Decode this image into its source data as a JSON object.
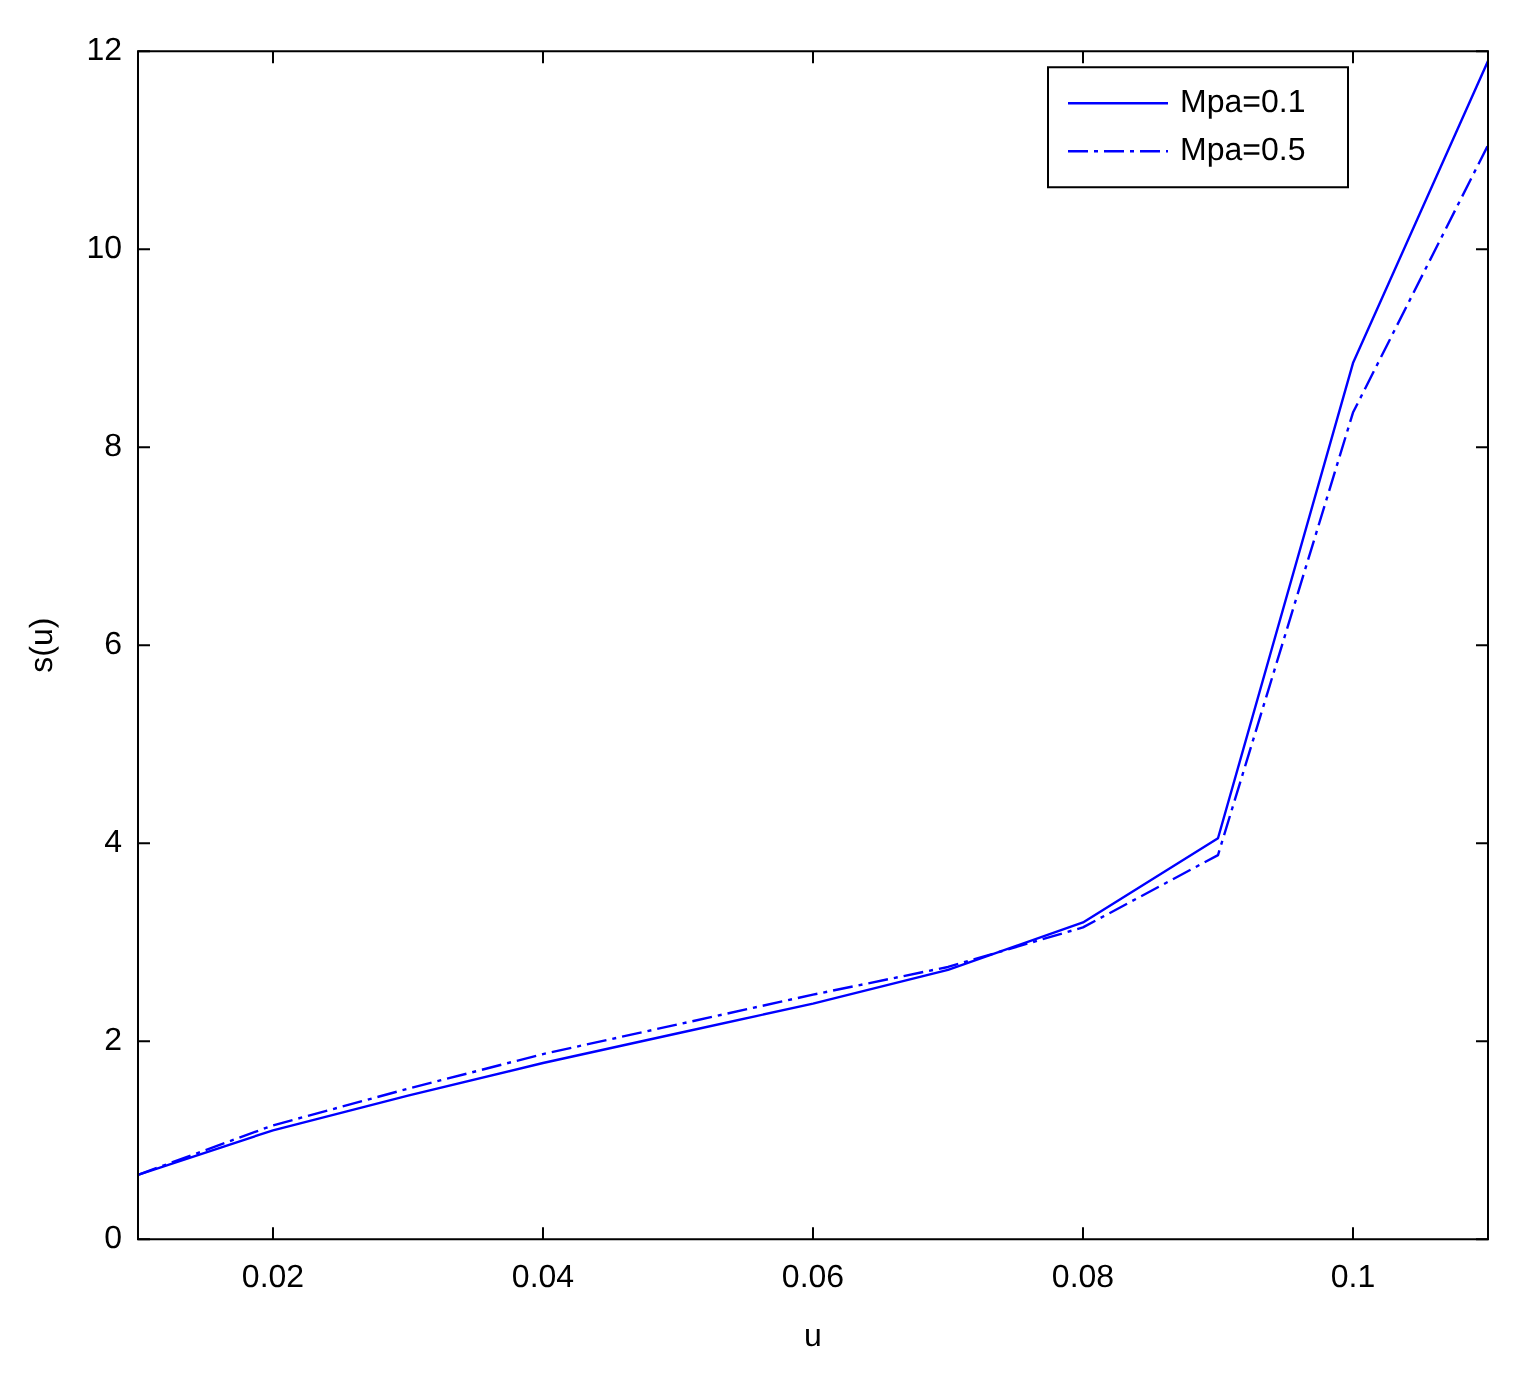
{
  "chart_data": {
    "type": "line",
    "xlabel": "u",
    "ylabel": "s(u)",
    "x": [
      0.01,
      0.02,
      0.03,
      0.04,
      0.05,
      0.06,
      0.07,
      0.08,
      0.09,
      0.1,
      0.11
    ],
    "series": [
      {
        "name": "Mpa=0.1",
        "color": "#0000ff",
        "line_style": "solid",
        "values": [
          0.65,
          1.1,
          1.45,
          1.78,
          2.08,
          2.38,
          2.72,
          3.2,
          4.05,
          8.85,
          11.9
        ]
      },
      {
        "name": "Mpa=0.5",
        "color": "#0000ff",
        "line_style": "dashdot",
        "values": [
          0.65,
          1.15,
          1.52,
          1.87,
          2.17,
          2.47,
          2.75,
          3.15,
          3.88,
          8.35,
          11.05
        ]
      }
    ],
    "xlim": [
      0.01,
      0.11
    ],
    "xticks": [
      0.02,
      0.04,
      0.06,
      0.08,
      0.1
    ],
    "ylim": [
      0,
      12
    ],
    "yticks": [
      0,
      2,
      4,
      6,
      8,
      10,
      12
    ],
    "grid": false,
    "legend": "top right",
    "marker": "none"
  }
}
